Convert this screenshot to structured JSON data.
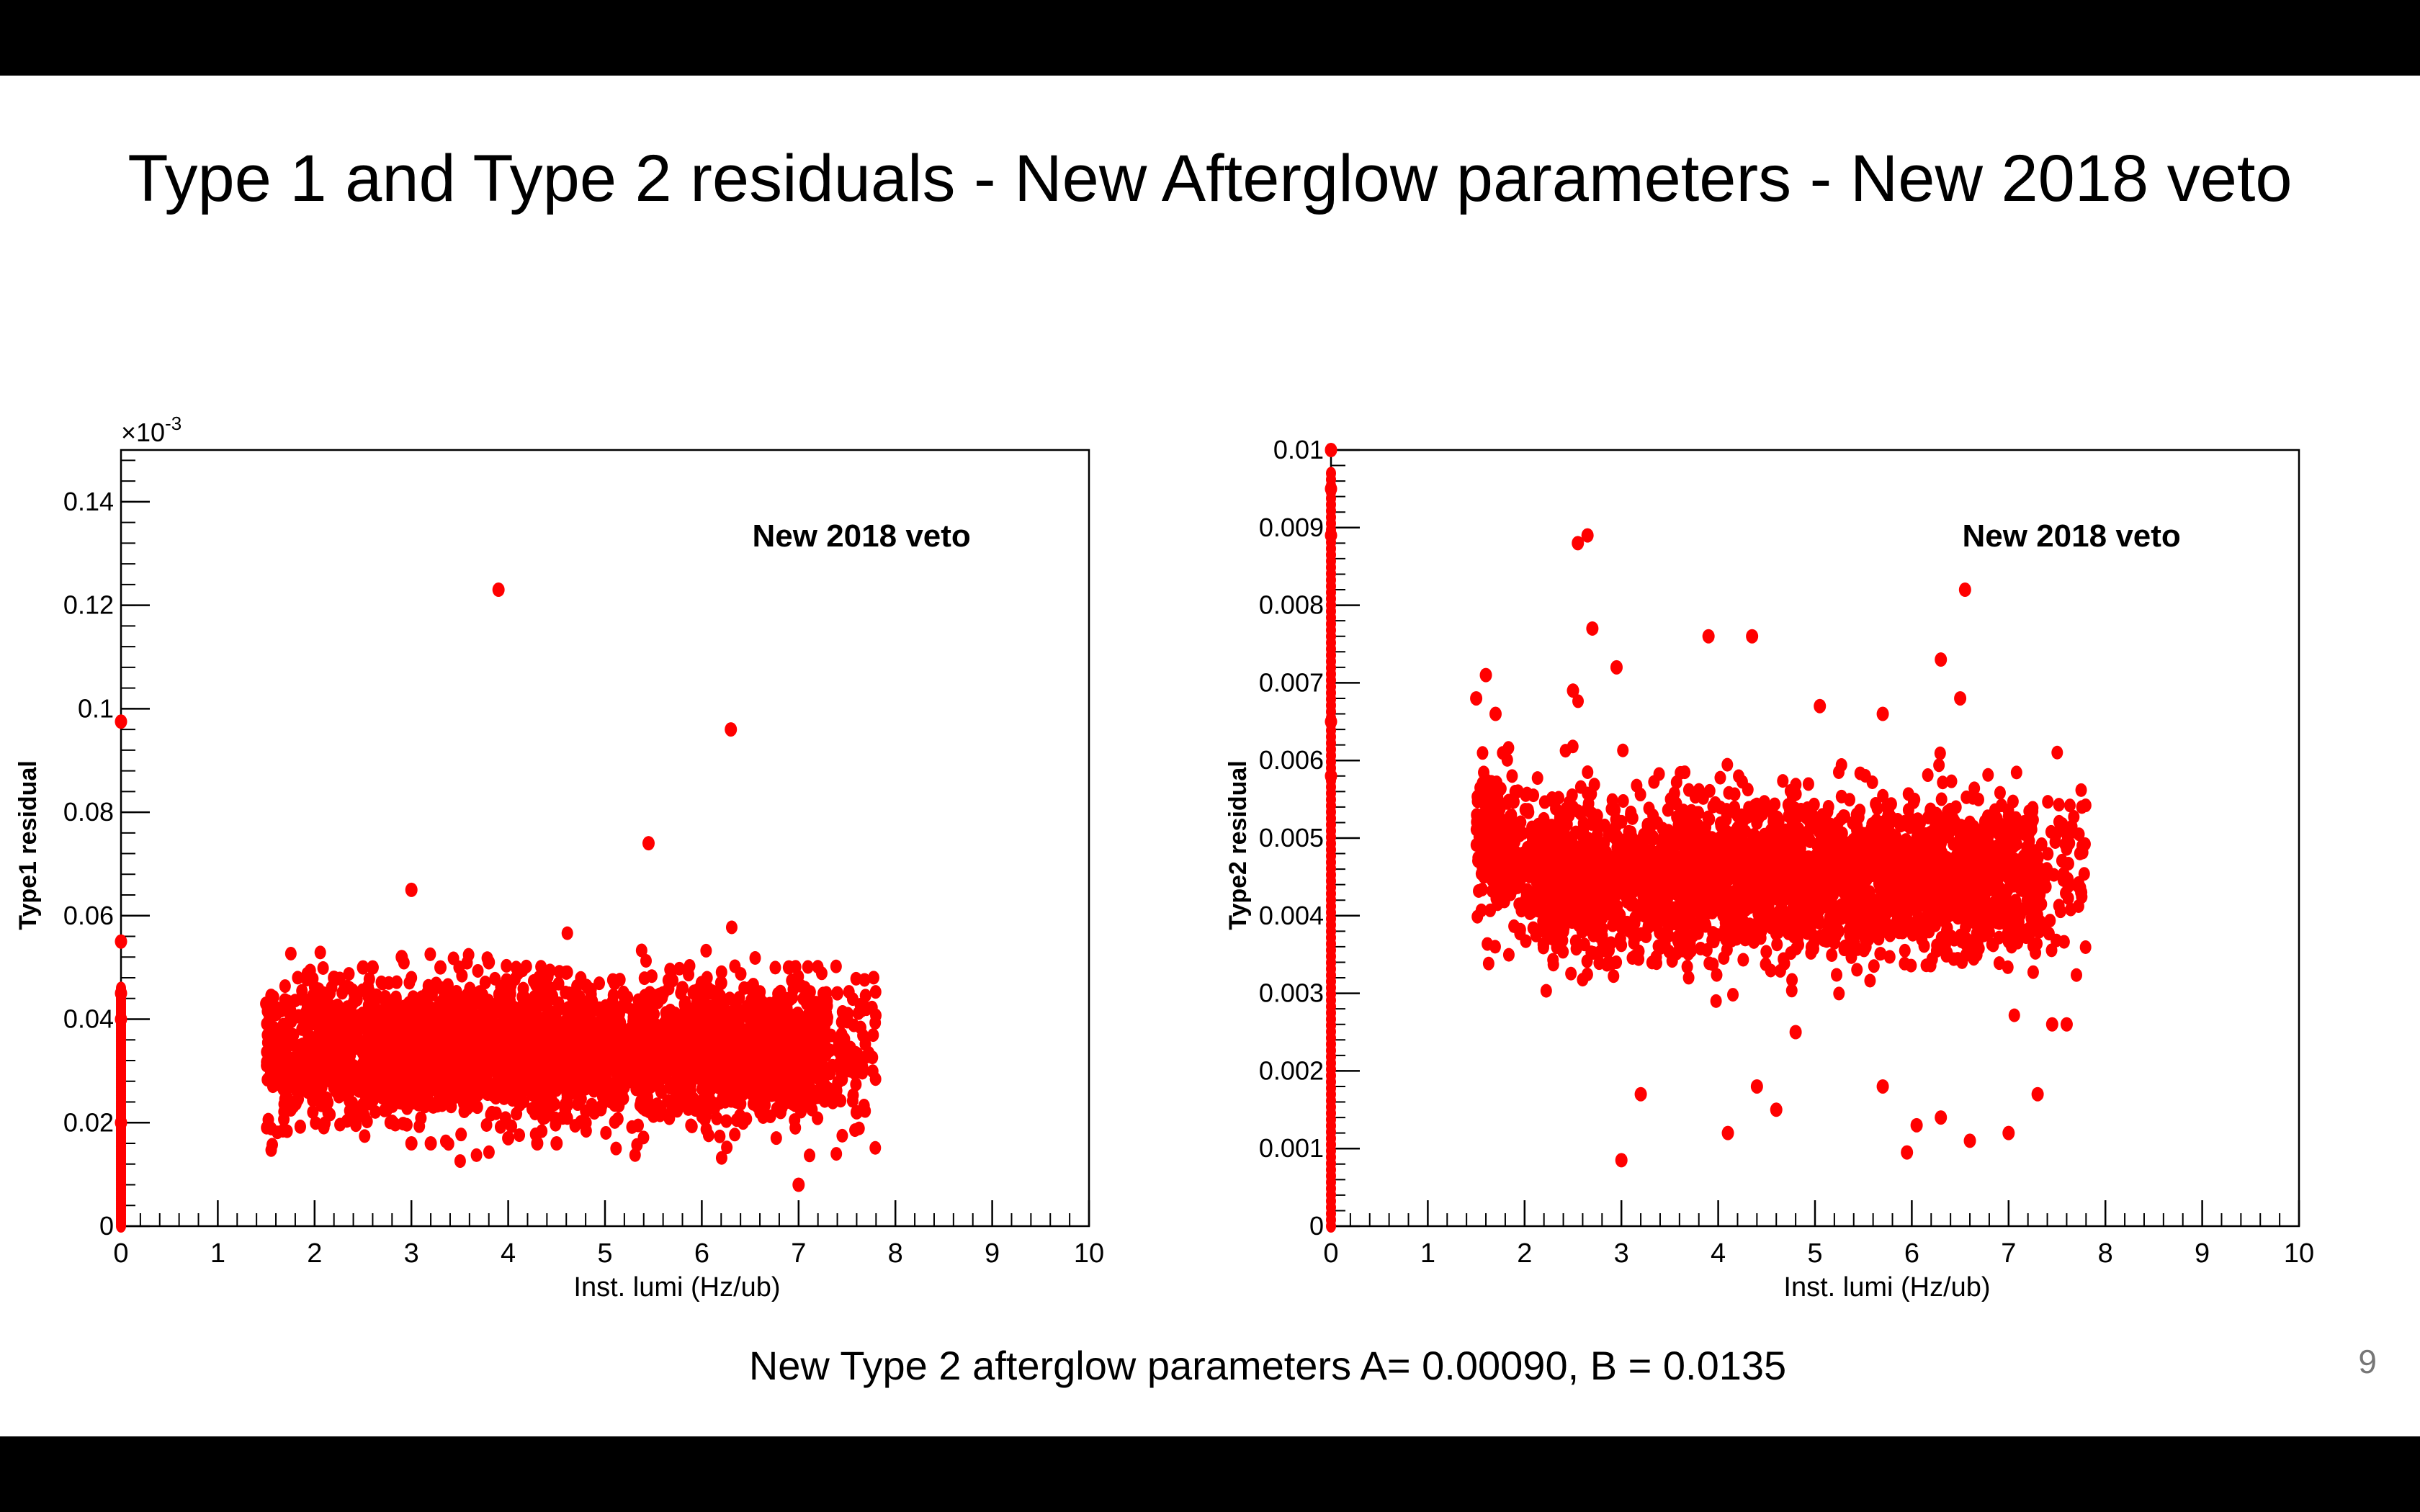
{
  "slide": {
    "title": "Type 1 and Type 2 residuals - New Afterglow parameters - New 2018 veto",
    "footer": "New Type 2 afterglow parameters A= 0.00090, B = 0.0135",
    "page_number": "9"
  },
  "chart_data": [
    {
      "type": "scatter",
      "label": "New 2018 veto",
      "xlabel": "Inst. lumi (Hz/ub)",
      "ylabel": "Type1 residual",
      "y_multiplier": "×10^-3",
      "xlim": [
        0,
        10
      ],
      "ylim": [
        0,
        0.15
      ],
      "x_ticks": [
        "0",
        "1",
        "2",
        "3",
        "4",
        "5",
        "6",
        "7",
        "8",
        "9",
        "10"
      ],
      "y_ticks": [
        "0",
        "0.02",
        "0.04",
        "0.06",
        "0.08",
        "0.1",
        "0.12",
        "0.14"
      ],
      "marker_color": "#ff0000",
      "bulk_region": {
        "x_range": [
          1.5,
          7.8
        ],
        "y_center": 0.034,
        "y_spread": 0.012
      },
      "series": [
        {
          "x": [
            3.9,
            6.3,
            5.45,
            3.0,
            0.0,
            0.0,
            0.0,
            0.0,
            0.0,
            7.0,
            3.0,
            3.2,
            4.0,
            4.3,
            4.5,
            2.6,
            2.9,
            5.8,
            6.2,
            6.9,
            7.4,
            7.6,
            1.5,
            1.6,
            1.7,
            2.2,
            2.5,
            3.3,
            3.8,
            4.6,
            5.1,
            5.6,
            6.0,
            6.5,
            7.2,
            7.5,
            7.7
          ],
          "y": [
            0.123,
            0.096,
            0.074,
            0.065,
            0.0975,
            0.055,
            0.045,
            0.04,
            0.02,
            0.008,
            0.016,
            0.016,
            0.017,
            0.016,
            0.016,
            0.05,
            0.052,
            0.046,
            0.047,
            0.05,
            0.045,
            0.022,
            0.043,
            0.041,
            0.038,
            0.048,
            0.05,
            0.05,
            0.051,
            0.049,
            0.047,
            0.045,
            0.047,
            0.046,
            0.041,
            0.04,
            0.042
          ]
        }
      ]
    },
    {
      "type": "scatter",
      "label": "New 2018 veto",
      "xlabel": "Inst. lumi (Hz/ub)",
      "ylabel": "Type2 residual",
      "xlim": [
        0,
        10
      ],
      "ylim": [
        0,
        0.01
      ],
      "x_ticks": [
        "0",
        "1",
        "2",
        "3",
        "4",
        "5",
        "6",
        "7",
        "8",
        "9",
        "10"
      ],
      "y_ticks": [
        "0",
        "0.001",
        "0.002",
        "0.003",
        "0.004",
        "0.005",
        "0.006",
        "0.007",
        "0.008",
        "0.009",
        "0.01"
      ],
      "marker_color": "#ff0000",
      "bulk_region": {
        "x_range": [
          1.5,
          7.8
        ],
        "y_center": 0.0045,
        "y_spread": 0.0009
      },
      "series": [
        {
          "x": [
            2.55,
            2.65,
            6.55,
            2.7,
            3.9,
            4.35,
            6.3,
            2.95,
            2.5,
            0.0,
            0.0,
            0.0,
            0.0,
            0.0,
            3.0,
            3.2,
            4.1,
            4.4,
            4.6,
            5.7,
            5.95,
            6.05,
            6.3,
            6.6,
            7.0,
            7.3,
            7.45,
            7.6,
            7.75,
            1.5,
            1.6,
            1.7,
            1.55,
            5.05,
            5.7,
            6.5,
            4.8
          ],
          "y": [
            0.0088,
            0.0089,
            0.0082,
            0.0077,
            0.0076,
            0.0076,
            0.0073,
            0.0072,
            0.0069,
            0.01,
            0.0095,
            0.0089,
            0.0065,
            0.0058,
            0.00085,
            0.0017,
            0.0012,
            0.0018,
            0.0015,
            0.0018,
            0.00095,
            0.0013,
            0.0014,
            0.0011,
            0.0012,
            0.0017,
            0.0026,
            0.0026,
            0.0043,
            0.0068,
            0.0071,
            0.0066,
            0.0051,
            0.0067,
            0.0066,
            0.0068,
            0.0025
          ]
        }
      ]
    }
  ]
}
